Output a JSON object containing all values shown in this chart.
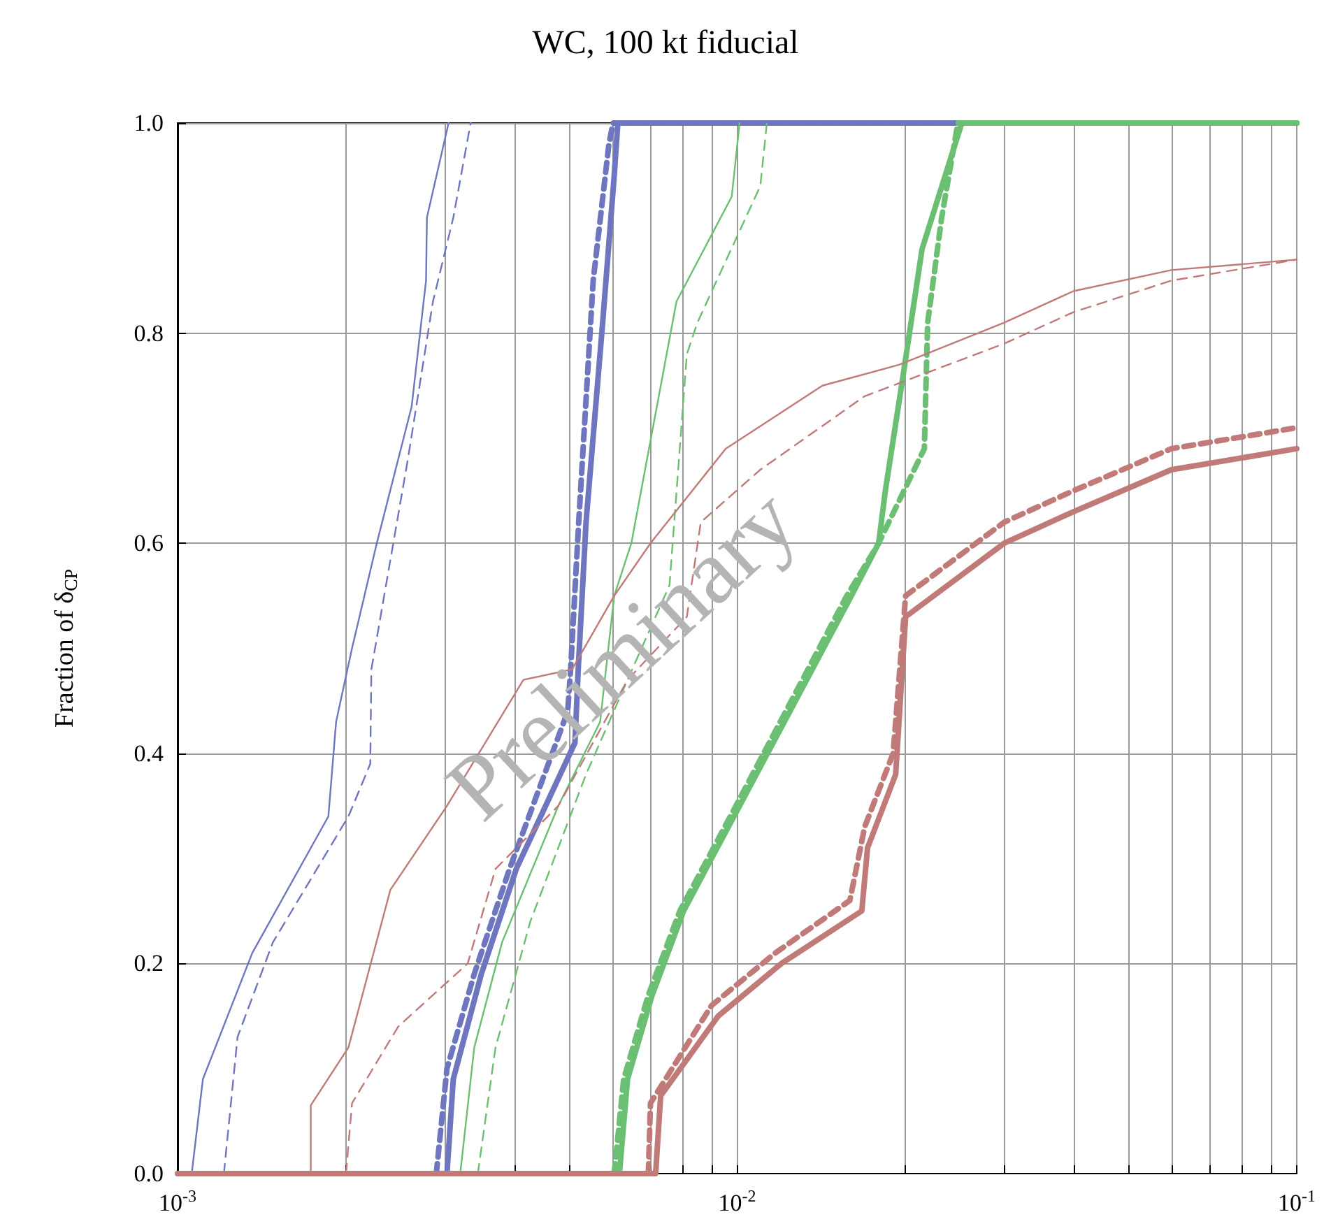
{
  "chart_data": {
    "type": "line",
    "title": "WC, 100 kt fiducial",
    "ylabel": "Fraction of δ$_{CP}$",
    "annotations": [
      "Preliminary"
    ],
    "log": "x",
    "grid": true,
    "marker": "none",
    "xlim": [
      0.001,
      0.1
    ],
    "ylim": [
      0,
      1
    ],
    "xticks": [
      {
        "value": 0.001,
        "label": "10$^{-3}$"
      },
      {
        "value": 0.002,
        "label": null
      },
      {
        "value": 0.003,
        "label": null
      },
      {
        "value": 0.004,
        "label": null
      },
      {
        "value": 0.005,
        "label": null
      },
      {
        "value": 0.006,
        "label": null
      },
      {
        "value": 0.007,
        "label": null
      },
      {
        "value": 0.008,
        "label": null
      },
      {
        "value": 0.009,
        "label": null
      },
      {
        "value": 0.01,
        "label": "10$^{-2}$"
      },
      {
        "value": 0.02,
        "label": null
      },
      {
        "value": 0.03,
        "label": null
      },
      {
        "value": 0.04,
        "label": null
      },
      {
        "value": 0.05,
        "label": null
      },
      {
        "value": 0.06,
        "label": null
      },
      {
        "value": 0.07,
        "label": null
      },
      {
        "value": 0.08,
        "label": null
      },
      {
        "value": 0.09,
        "label": null
      },
      {
        "value": 0.1,
        "label": "10$^{-1}$"
      }
    ],
    "yticks": [
      {
        "value": 0,
        "label": "0.0"
      },
      {
        "value": 0.2,
        "label": "0.2"
      },
      {
        "value": 0.4,
        "label": "0.4"
      },
      {
        "value": 0.6,
        "label": "0.6"
      },
      {
        "value": 0.8,
        "label": "0.8"
      },
      {
        "value": 1,
        "label": "1.0"
      }
    ],
    "series": [
      {
        "color": "#6f76c0",
        "line_style": "solid",
        "x": [
          0.00106,
          0.00111,
          0.00136,
          0.00186,
          0.00192,
          0.00205,
          0.00227,
          0.00262,
          0.00278,
          0.00279,
          0.00305
        ],
        "values": [
          0,
          0.09,
          0.21,
          0.34,
          0.43,
          0.5,
          0.6,
          0.73,
          0.85,
          0.91,
          1
        ]
      },
      {
        "color": "#6f76c0",
        "line_style": "dashed",
        "x": [
          0.00121,
          0.00128,
          0.00148,
          0.00202,
          0.00221,
          0.00222,
          0.00234,
          0.00258,
          0.00286,
          0.00311,
          0.00334
        ],
        "values": [
          0,
          0.13,
          0.22,
          0.34,
          0.39,
          0.48,
          0.55,
          0.68,
          0.83,
          0.91,
          1
        ]
      },
      {
        "color": "#6f76c0",
        "line_style": "solid",
        "x": [
          0.00303,
          0.00311,
          0.00349,
          0.00403,
          0.00513,
          0.0052,
          0.00537,
          0.00575,
          0.00603,
          0.00612,
          0.1
        ],
        "values": [
          0,
          0.09,
          0.19,
          0.29,
          0.41,
          0.48,
          0.62,
          0.81,
          0.95,
          1,
          1
        ]
      },
      {
        "color": "#6f76c0",
        "line_style": "dashed",
        "x": [
          0.0029,
          0.00303,
          0.00339,
          0.00392,
          0.00498,
          0.00504,
          0.00521,
          0.00553,
          0.0059,
          0.006,
          0.1
        ],
        "values": [
          0,
          0.1,
          0.19,
          0.29,
          0.44,
          0.48,
          0.62,
          0.85,
          0.98,
          1,
          1
        ]
      },
      {
        "color": "#6bbf72",
        "line_style": "solid",
        "x": [
          0.0032,
          0.00339,
          0.0038,
          0.00479,
          0.00569,
          0.00603,
          0.00647,
          0.00779,
          0.00978,
          0.0101
        ],
        "values": [
          0,
          0.12,
          0.22,
          0.35,
          0.43,
          0.55,
          0.6,
          0.83,
          0.93,
          1
        ]
      },
      {
        "color": "#6bbf72",
        "line_style": "dashed",
        "x": [
          0.00344,
          0.0037,
          0.00427,
          0.00537,
          0.00637,
          0.00757,
          0.00813,
          0.00849,
          0.011,
          0.0113
        ],
        "values": [
          0,
          0.12,
          0.24,
          0.38,
          0.47,
          0.56,
          0.78,
          0.81,
          0.94,
          1
        ]
      },
      {
        "color": "#6bbf72",
        "line_style": "solid",
        "x": [
          0.00616,
          0.00637,
          0.00705,
          0.00802,
          0.0101,
          0.016,
          0.0179,
          0.0184,
          0.0198,
          0.0214,
          0.0252,
          0.1
        ],
        "values": [
          0,
          0.09,
          0.17,
          0.25,
          0.35,
          0.55,
          0.6,
          0.65,
          0.76,
          0.88,
          1,
          1
        ]
      },
      {
        "color": "#6bbf72",
        "line_style": "dashed",
        "x": [
          0.00603,
          0.00627,
          0.00694,
          0.0079,
          0.00995,
          0.0157,
          0.0179,
          0.0216,
          0.0219,
          0.0232,
          0.0248,
          0.1
        ],
        "values": [
          0,
          0.09,
          0.17,
          0.25,
          0.35,
          0.55,
          0.6,
          0.69,
          0.81,
          0.91,
          1,
          1
        ]
      },
      {
        "color": "#c07a78",
        "line_style": "solid",
        "x": [
          0.001,
          0.00173,
          0.00173,
          0.00202,
          0.0024,
          0.00303,
          0.00415,
          0.00507,
          0.00603,
          0.007,
          0.00954,
          0.0142,
          0.0195,
          0.03,
          0.0399,
          0.0597,
          0.1
        ],
        "values": [
          0,
          0,
          0.065,
          0.12,
          0.27,
          0.35,
          0.47,
          0.48,
          0.55,
          0.6,
          0.69,
          0.75,
          0.77,
          0.81,
          0.84,
          0.86,
          0.87
        ]
      },
      {
        "color": "#c07a78",
        "line_style": "dashed",
        "x": [
          0.002,
          0.00205,
          0.00248,
          0.0033,
          0.0037,
          0.00479,
          0.00637,
          0.00813,
          0.00861,
          0.011,
          0.0169,
          0.03,
          0.0399,
          0.0597,
          0.1
        ],
        "values": [
          0,
          0.067,
          0.14,
          0.2,
          0.29,
          0.35,
          0.47,
          0.53,
          0.62,
          0.67,
          0.74,
          0.79,
          0.82,
          0.85,
          0.87
        ]
      },
      {
        "color": "#c07a78",
        "line_style": "solid",
        "x": [
          0.001,
          0.00715,
          0.0073,
          0.00925,
          0.012,
          0.0167,
          0.0171,
          0.0192,
          0.02,
          0.03,
          0.0399,
          0.0597,
          0.1
        ],
        "values": [
          0,
          0,
          0.074,
          0.15,
          0.2,
          0.25,
          0.31,
          0.38,
          0.53,
          0.6,
          0.63,
          0.67,
          0.69
        ]
      },
      {
        "color": "#c07a78",
        "line_style": "dashed",
        "x": [
          0.00694,
          0.007,
          0.009,
          0.0117,
          0.0159,
          0.0169,
          0.019,
          0.02,
          0.03,
          0.0399,
          0.0597,
          0.1
        ],
        "values": [
          0,
          0.067,
          0.16,
          0.21,
          0.26,
          0.33,
          0.4,
          0.55,
          0.62,
          0.65,
          0.69,
          0.71
        ]
      }
    ]
  }
}
